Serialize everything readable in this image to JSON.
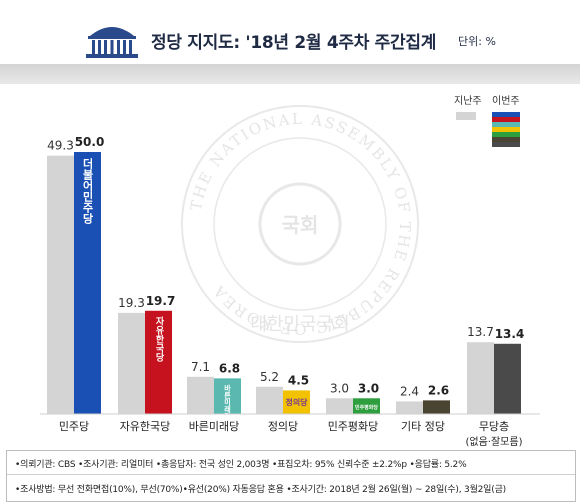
{
  "header": {
    "title": "정당 지지도: '18년 2월 4주차 주간집계",
    "unit": "단위: %"
  },
  "watermark": {
    "ring_text": "THE NATIONAL ASSEMBLY OF THE REPUBLIC OF KOREA",
    "bottom_text": "대한민국국회",
    "center_text": "국회"
  },
  "legend": {
    "prev_label": "지난주",
    "curr_label": "이번주"
  },
  "chart_data": {
    "type": "bar",
    "categories": [
      "민주당",
      "자유한국당",
      "바른미래당",
      "정의당",
      "민주평화당",
      "기타 정당",
      "무당층"
    ],
    "category_sublabels": [
      "",
      "",
      "",
      "",
      "",
      "",
      "(없음·잘모름)"
    ],
    "series": [
      {
        "name": "지난주",
        "values": [
          49.3,
          19.3,
          7.1,
          5.2,
          3.0,
          2.4,
          13.7
        ],
        "color": "#d4d4d4"
      },
      {
        "name": "이번주",
        "values": [
          50.0,
          19.7,
          6.8,
          4.5,
          3.0,
          2.6,
          13.4
        ],
        "colors": [
          "#1a4fb4",
          "#c5121e",
          "#5ab8b0",
          "#f2c200",
          "#2e9e3e",
          "#4a4433",
          "#4a4a4a"
        ]
      }
    ],
    "bar_logos": [
      "더불어민주당",
      "자유한국당",
      "바른미래당",
      "정의당",
      "민주평화당",
      "",
      ""
    ],
    "label_texts": {
      "prev": [
        "49.3",
        "19.3",
        "7.1",
        "5.2",
        "3.0",
        "2.4",
        "13.7"
      ],
      "curr": [
        "50.0",
        "19.7",
        "6.8",
        "4.5",
        "3.0",
        "2.6",
        "13.4"
      ]
    },
    "ylim": [
      0,
      50
    ],
    "grid": false
  },
  "footer": {
    "line1": "•의뢰기관: CBS •조사기관: 리얼미터 •총응답자: 전국 성인 2,003명 •표집오차: 95% 신뢰수준 ±2.2%p •응답률: 5.2%",
    "line2": "•조사방법: 무선 전화면접(10%), 무선(70%)•유선(20%) 자동응답 혼용 •조사기간: 2018년 2월 26일(월) ~ 28일(수), 3월2일(금)"
  },
  "colors": {
    "title": "#1f2a44",
    "prev_bar": "#d4d4d4"
  }
}
